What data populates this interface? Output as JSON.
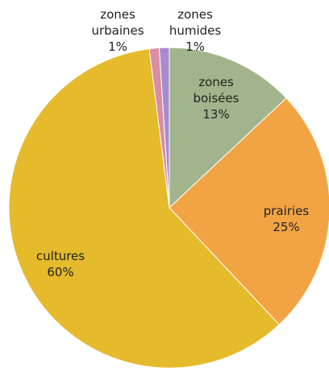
{
  "chart_data": {
    "type": "pie",
    "categories": [
      "zones boisées",
      "prairies",
      "cultures",
      "zones urbaines",
      "zones humides"
    ],
    "values": [
      13,
      25,
      60,
      1,
      1
    ],
    "value_labels": [
      "13%",
      "25%",
      "60%",
      "1%",
      "1%"
    ],
    "colors": [
      "#a2b48c",
      "#f2a445",
      "#e5ba2b",
      "#d98ea6",
      "#a68ccd"
    ]
  }
}
